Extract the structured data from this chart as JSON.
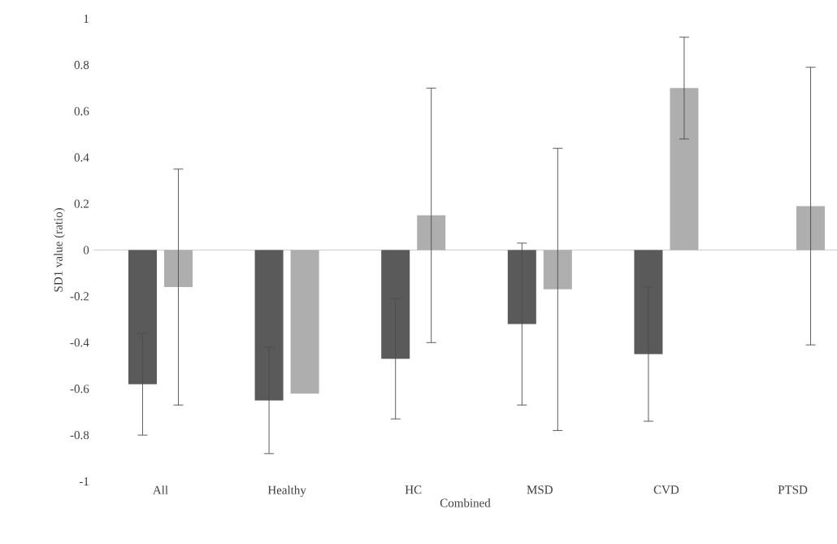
{
  "chart_data": {
    "type": "bar",
    "xlabel": "Combined",
    "ylabel": "SD1 value (ratio)",
    "categories": [
      "All",
      "Healthy",
      "HC",
      "MSD",
      "CVD",
      "PTSD"
    ],
    "series": [
      {
        "color": "#5a5a5a",
        "values": [
          -0.58,
          -0.65,
          -0.47,
          -0.32,
          -0.45,
          null
        ],
        "errors": [
          0.22,
          0.23,
          0.26,
          0.35,
          0.29,
          null
        ]
      },
      {
        "color": "#aeaeae",
        "values": [
          -0.16,
          -0.62,
          0.15,
          -0.17,
          0.7,
          0.19
        ],
        "errors": [
          0.51,
          null,
          0.55,
          0.61,
          0.22,
          0.6
        ]
      }
    ],
    "ylim": [
      -1,
      1
    ],
    "yticks": [
      -1,
      -0.8,
      -0.6,
      -0.4,
      -0.2,
      0,
      0.2,
      0.4,
      0.6,
      0.8,
      1
    ]
  }
}
